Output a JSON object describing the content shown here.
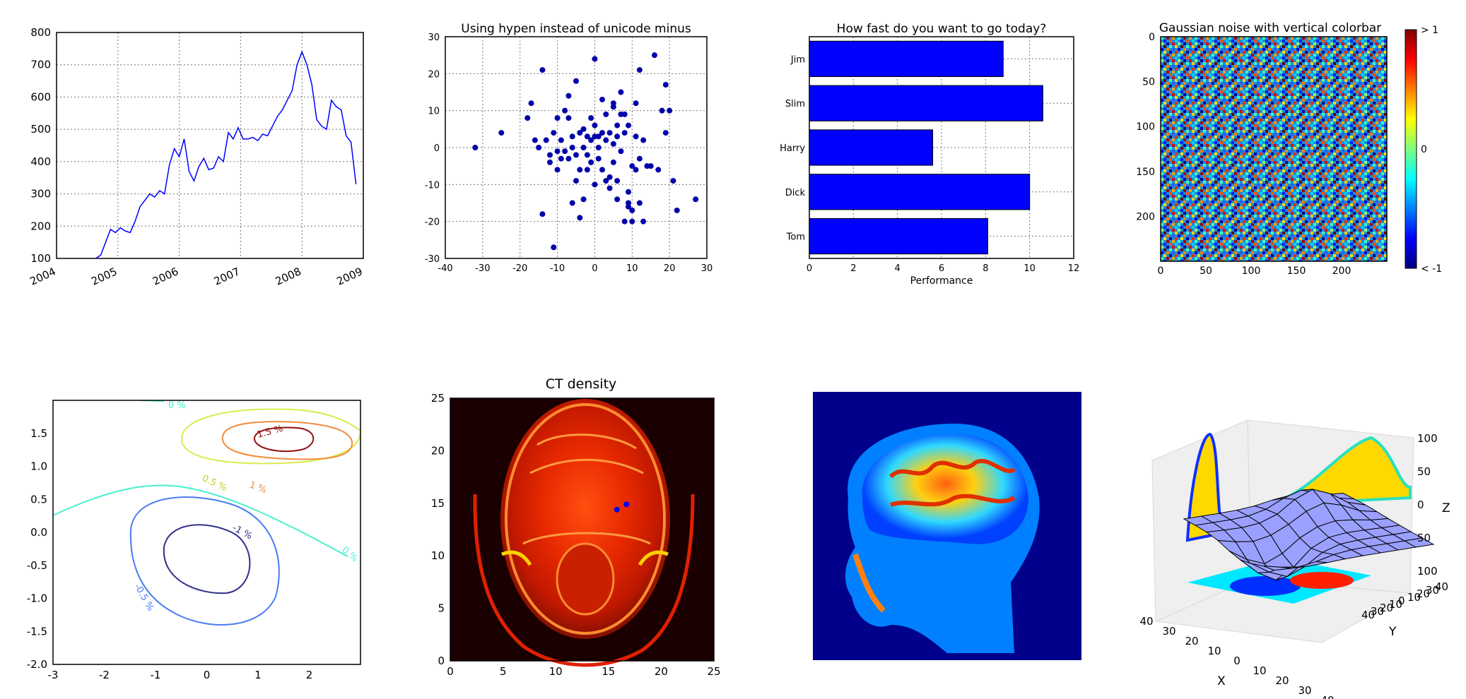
{
  "chart_data": [
    {
      "type": "line",
      "title": "",
      "xlabel": "",
      "ylabel": "",
      "xlim": [
        2004.0,
        2009.0
      ],
      "ylim": [
        100,
        800
      ],
      "grid": true,
      "x_tick_labels": [
        "2004",
        "2005",
        "2006",
        "2007",
        "2008",
        "2009"
      ],
      "y_tick_labels": [
        "100",
        "200",
        "300",
        "400",
        "500",
        "600",
        "700",
        "800"
      ],
      "series": [
        {
          "color": "#0000ff",
          "x": [
            2004.64,
            2004.72,
            2004.8,
            2004.88,
            2004.96,
            2005.04,
            2005.12,
            2005.2,
            2005.28,
            2005.36,
            2005.44,
            2005.52,
            2005.6,
            2005.68,
            2005.76,
            2005.84,
            2005.92,
            2006.0,
            2006.08,
            2006.16,
            2006.24,
            2006.32,
            2006.4,
            2006.48,
            2006.56,
            2006.64,
            2006.72,
            2006.8,
            2006.88,
            2006.96,
            2007.04,
            2007.12,
            2007.2,
            2007.28,
            2007.36,
            2007.44,
            2007.52,
            2007.6,
            2007.68,
            2007.76,
            2007.84,
            2007.92,
            2008.0,
            2008.08,
            2008.16,
            2008.24,
            2008.32,
            2008.4,
            2008.48,
            2008.56,
            2008.64,
            2008.72,
            2008.8,
            2008.88
          ],
          "y": [
            100,
            110,
            150,
            190,
            180,
            195,
            185,
            180,
            215,
            260,
            280,
            300,
            290,
            310,
            300,
            390,
            440,
            415,
            470,
            370,
            340,
            385,
            410,
            375,
            380,
            415,
            400,
            490,
            470,
            505,
            470,
            470,
            475,
            465,
            485,
            480,
            510,
            540,
            560,
            590,
            620,
            700,
            740,
            700,
            640,
            530,
            510,
            500,
            590,
            570,
            560,
            480,
            460,
            330
          ]
        }
      ]
    },
    {
      "type": "scatter",
      "title": "Using hypen instead of unicode minus",
      "xlim": [
        -40,
        30
      ],
      "ylim": [
        -30,
        30
      ],
      "grid": true,
      "x_tick_labels": [
        "-40",
        "-30",
        "-20",
        "-10",
        "0",
        "10",
        "20",
        "30"
      ],
      "y_tick_labels": [
        "-30",
        "-20",
        "-10",
        "0",
        "10",
        "20",
        "30"
      ],
      "series": [
        {
          "color": "#0000aa",
          "x": [
            -32,
            -25,
            -18,
            -17,
            -16,
            -15,
            -14,
            -14,
            -13,
            -12,
            -12,
            -11,
            -11,
            -10,
            -10,
            -10,
            -9,
            -9,
            -8,
            -8,
            -7,
            -7,
            -7,
            -6,
            -6,
            -6,
            -5,
            -5,
            -5,
            -4,
            -4,
            -4,
            -3,
            -3,
            -3,
            -2,
            -2,
            -2,
            -1,
            -1,
            -1,
            0,
            0,
            0,
            0,
            1,
            1,
            1,
            2,
            2,
            2,
            3,
            3,
            3,
            4,
            4,
            4,
            5,
            5,
            5,
            5,
            6,
            6,
            6,
            6,
            7,
            7,
            7,
            8,
            8,
            8,
            9,
            9,
            9,
            9,
            10,
            10,
            10,
            11,
            11,
            11,
            12,
            12,
            12,
            13,
            13,
            14,
            15,
            16,
            17,
            18,
            19,
            19,
            20,
            21,
            22,
            27
          ],
          "y": [
            0,
            4,
            8,
            12,
            2,
            0,
            -18,
            21,
            2,
            -2,
            -4,
            4,
            -27,
            -1,
            8,
            -6,
            2,
            -3,
            -1,
            10,
            8,
            14,
            -3,
            0,
            -15,
            3,
            -2,
            -9,
            18,
            -6,
            4,
            -19,
            -14,
            0,
            5,
            -6,
            -2,
            3,
            8,
            2,
            -4,
            24,
            3,
            6,
            -10,
            0,
            -3,
            3,
            4,
            -6,
            13,
            9,
            -9,
            2,
            -11,
            4,
            -8,
            12,
            -4,
            1,
            11,
            -14,
            6,
            3,
            -9,
            15,
            -1,
            9,
            9,
            4,
            -20,
            6,
            -16,
            -12,
            -15,
            -20,
            -17,
            -5,
            -6,
            3,
            12,
            -3,
            -15,
            21,
            2,
            -20,
            -5,
            -5,
            25,
            -6,
            10,
            17,
            4,
            10,
            -9,
            -17,
            -14
          ]
        }
      ]
    },
    {
      "type": "bar",
      "orientation": "horizontal",
      "title": "How fast do you want to go today?",
      "xlabel": "Performance",
      "xlim": [
        0,
        12
      ],
      "grid": true,
      "x_tick_labels": [
        "0",
        "2",
        "4",
        "6",
        "8",
        "10",
        "12"
      ],
      "categories": [
        "Tom",
        "Dick",
        "Harry",
        "Slim",
        "Jim"
      ],
      "values": [
        8.1,
        10.0,
        5.6,
        10.6,
        8.8
      ],
      "color": "#0000ff"
    },
    {
      "type": "heatmap",
      "title": "Gaussian noise with vertical colorbar",
      "xlim": [
        0,
        250
      ],
      "ylim": [
        0,
        250
      ],
      "x_tick_labels": [
        "0",
        "50",
        "100",
        "150",
        "200"
      ],
      "y_tick_labels": [
        "0",
        "50",
        "100",
        "150",
        "200"
      ],
      "colorbar_ticks": [
        "> 1",
        "0",
        "< -1"
      ],
      "colormap": "jet"
    },
    {
      "type": "contour",
      "title": "",
      "xlim": [
        -3,
        3
      ],
      "ylim": [
        -2,
        2
      ],
      "x_tick_labels": [
        "-3",
        "-2",
        "-1",
        "0",
        "1",
        "2"
      ],
      "y_tick_labels": [
        "-2.0",
        "-1.5",
        "-1.0",
        "-0.5",
        "0.0",
        "0.5",
        "1.0",
        "1.5"
      ],
      "contour_labels": [
        "-1 %",
        "-0.5 %",
        "0 %",
        "0 %",
        "0.5 %",
        "1 %",
        "1.5 %"
      ]
    },
    {
      "type": "image",
      "title": "CT density",
      "xlim": [
        0,
        25
      ],
      "ylim": [
        0,
        25
      ],
      "x_tick_labels": [
        "0",
        "5",
        "10",
        "15",
        "20",
        "25"
      ],
      "y_tick_labels": [
        "0",
        "5",
        "10",
        "15",
        "20",
        "25"
      ],
      "points": [
        {
          "x": 15.8,
          "y": 14.4
        },
        {
          "x": 16.7,
          "y": 14.9
        }
      ]
    },
    {
      "type": "image",
      "title": ""
    },
    {
      "type": "surface3d",
      "title": "",
      "xlabel": "X",
      "ylabel": "Y",
      "zlabel": "Z",
      "x_tick_labels": [
        "40",
        "30",
        "20",
        "10",
        "0",
        "10",
        "20",
        "30",
        "40"
      ],
      "y_tick_labels": [
        "40",
        "30",
        "20",
        "10",
        "0",
        "10",
        "20",
        "30",
        "40"
      ],
      "z_tick_labels": [
        "100",
        "50",
        "0",
        "50",
        "100"
      ]
    }
  ]
}
